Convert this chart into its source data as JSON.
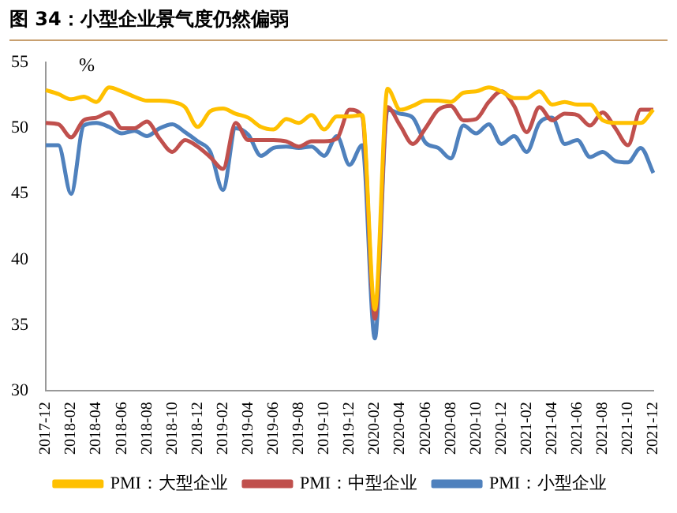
{
  "chart_data": {
    "type": "line",
    "title": "图 34：小型企业景气度仍然偏弱",
    "ylabel": "%",
    "categories": [
      "2017-12",
      null,
      "2018-02",
      null,
      "2018-04",
      null,
      "2018-06",
      null,
      "2018-08",
      null,
      "2018-10",
      null,
      "2018-12",
      null,
      "2019-02",
      null,
      "2019-04",
      null,
      "2019-06",
      null,
      "2019-08",
      null,
      "2019-10",
      null,
      "2019-12",
      null,
      "2020-02",
      null,
      "2020-04",
      null,
      "2020-06",
      null,
      "2020-08",
      null,
      "2020-10",
      null,
      "2020-12",
      null,
      "2021-02",
      null,
      "2021-04",
      null,
      "2021-06",
      null,
      "2021-08",
      null,
      "2021-10",
      null,
      "2021-12"
    ],
    "series": [
      {
        "name": "PMI：大型企业",
        "color": "#ffc000",
        "values": [
          52.9,
          52.6,
          52.2,
          52.4,
          52.0,
          53.1,
          52.8,
          52.4,
          52.1,
          52.1,
          52.0,
          51.6,
          50.1,
          51.3,
          51.5,
          51.1,
          50.8,
          50.1,
          49.9,
          50.7,
          50.4,
          51.0,
          49.9,
          50.9,
          50.9,
          51.0,
          36.2,
          53.0,
          51.4,
          51.7,
          52.1,
          52.1,
          52.0,
          52.7,
          52.8,
          53.1,
          52.8,
          52.3,
          52.3,
          52.8,
          51.8,
          52.0,
          51.8,
          51.8,
          50.6,
          50.4,
          50.4,
          50.4,
          51.4
        ]
      },
      {
        "name": "PMI：中型企业",
        "color": "#c0504d",
        "values": [
          50.4,
          50.3,
          49.3,
          50.6,
          50.8,
          51.2,
          50.0,
          50.0,
          50.5,
          49.2,
          48.2,
          49.1,
          48.6,
          47.8,
          46.9,
          50.4,
          49.1,
          49.1,
          49.1,
          49.0,
          48.6,
          49.0,
          49.0,
          49.2,
          51.4,
          50.9,
          35.5,
          51.6,
          50.2,
          48.8,
          50.0,
          51.4,
          51.7,
          50.6,
          50.7,
          52.0,
          52.8,
          51.7,
          49.7,
          51.6,
          50.6,
          51.1,
          51.0,
          50.2,
          51.2,
          50.0,
          48.7,
          51.4,
          51.4
        ]
      },
      {
        "name": "PMI：小型企业",
        "color": "#4f81bd",
        "values": [
          48.7,
          48.7,
          45.0,
          50.2,
          50.4,
          50.1,
          49.6,
          49.8,
          49.4,
          50.0,
          50.3,
          49.7,
          49.0,
          48.2,
          45.3,
          50.0,
          49.5,
          47.9,
          48.5,
          48.6,
          48.5,
          48.6,
          47.9,
          49.4,
          47.2,
          48.7,
          34.0,
          51.4,
          51.1,
          50.8,
          48.9,
          48.5,
          47.7,
          50.2,
          49.6,
          50.3,
          48.8,
          49.4,
          48.2,
          50.4,
          50.8,
          48.8,
          49.1,
          47.8,
          48.2,
          47.5,
          47.4,
          48.5,
          46.6
        ]
      }
    ],
    "ylim": [
      30,
      55
    ],
    "yticks": [
      30,
      35,
      40,
      45,
      50,
      55
    ],
    "grid": false,
    "legend": "bottom",
    "marker": "none",
    "line_style": "solid"
  }
}
